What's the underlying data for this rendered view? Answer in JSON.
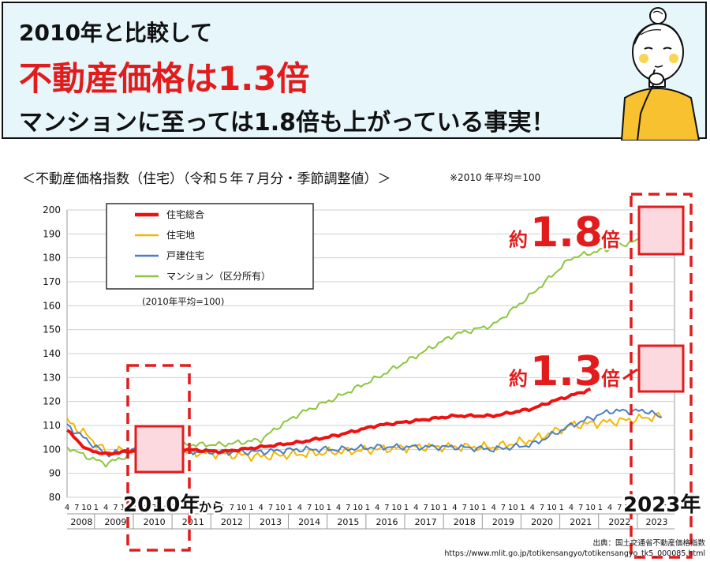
{
  "header": {
    "line1": "2010年と比較して",
    "line2": "不動産価格は1.3倍",
    "line3": "マンションに至っては1.8倍も上がっている事実！"
  },
  "chart_title": "＜不動産価格指数（住宅）（令和５年７月分・季節調整値）＞",
  "chart_note": "※2010 年平均＝100",
  "chart_data": {
    "type": "line",
    "ylim": [
      80,
      200
    ],
    "yticks": [
      80,
      90,
      100,
      110,
      120,
      130,
      140,
      150,
      160,
      170,
      180,
      190,
      200
    ],
    "base_note": "(2010年平均=100)",
    "years": [
      "2008",
      "2009",
      "2010",
      "2011",
      "2012",
      "2013",
      "2014",
      "2015",
      "2016",
      "2017",
      "2018",
      "2019",
      "2020",
      "2021",
      "2022",
      "2023"
    ],
    "month_ticks": [
      "4",
      "7",
      "10",
      "1"
    ],
    "x_start": "2008-04",
    "series": [
      {
        "name": "住宅総合",
        "color": "#ee1111",
        "anchors": [
          [
            0,
            108
          ],
          [
            6,
            100
          ],
          [
            12,
            98
          ],
          [
            24,
            100
          ],
          [
            36,
            100
          ],
          [
            48,
            99
          ],
          [
            60,
            101
          ],
          [
            72,
            103
          ],
          [
            84,
            106
          ],
          [
            96,
            110
          ],
          [
            108,
            112
          ],
          [
            120,
            114
          ],
          [
            132,
            114
          ],
          [
            144,
            117
          ],
          [
            150,
            120
          ],
          [
            162,
            125
          ]
        ]
      },
      {
        "name": "住宅地",
        "color": "#f7b500",
        "anchors": [
          [
            0,
            112
          ],
          [
            6,
            106
          ],
          [
            12,
            99
          ],
          [
            24,
            100
          ],
          [
            36,
            99
          ],
          [
            48,
            98
          ],
          [
            60,
            97
          ],
          [
            72,
            98
          ],
          [
            84,
            99
          ],
          [
            96,
            100
          ],
          [
            108,
            101
          ],
          [
            120,
            101
          ],
          [
            132,
            101
          ],
          [
            144,
            104
          ],
          [
            156,
            110
          ],
          [
            172,
            112
          ],
          [
            184,
            114
          ]
        ]
      },
      {
        "name": "戸建住宅",
        "color": "#4a7fc1",
        "anchors": [
          [
            0,
            110
          ],
          [
            6,
            104
          ],
          [
            12,
            98
          ],
          [
            24,
            100
          ],
          [
            36,
            99
          ],
          [
            48,
            99
          ],
          [
            60,
            99
          ],
          [
            72,
            100
          ],
          [
            84,
            100
          ],
          [
            96,
            101
          ],
          [
            108,
            101
          ],
          [
            120,
            101
          ],
          [
            132,
            100
          ],
          [
            144,
            102
          ],
          [
            156,
            110
          ],
          [
            168,
            116
          ],
          [
            180,
            116
          ],
          [
            184,
            113
          ]
        ]
      },
      {
        "name": "マンション（区分所有）",
        "color": "#8cc63f",
        "anchors": [
          [
            0,
            101
          ],
          [
            6,
            97
          ],
          [
            12,
            94
          ],
          [
            18,
            97
          ],
          [
            24,
            101
          ],
          [
            36,
            102
          ],
          [
            48,
            102
          ],
          [
            60,
            104
          ],
          [
            66,
            110
          ],
          [
            72,
            115
          ],
          [
            84,
            122
          ],
          [
            96,
            130
          ],
          [
            108,
            139
          ],
          [
            120,
            148
          ],
          [
            132,
            152
          ],
          [
            144,
            165
          ],
          [
            156,
            180
          ],
          [
            168,
            184
          ],
          [
            184,
            190
          ]
        ]
      }
    ]
  },
  "annotations": {
    "yaku": "約",
    "bai": "倍",
    "val_mansion": "1.8",
    "val_total": "1.3",
    "label_2010": "2010年",
    "label_kara": "から",
    "label_2023": "2023年"
  },
  "source": {
    "line1": "出典：国土交通省不動産価格指数",
    "line2": "https://www.mlit.go.jp/totikensangyo/totikensangyo_tk5_000085.html"
  },
  "colors": {
    "accent_red": "#e21c1c",
    "header_bg": "#e6f6fb",
    "highlight_fill": "#fcd9df"
  }
}
